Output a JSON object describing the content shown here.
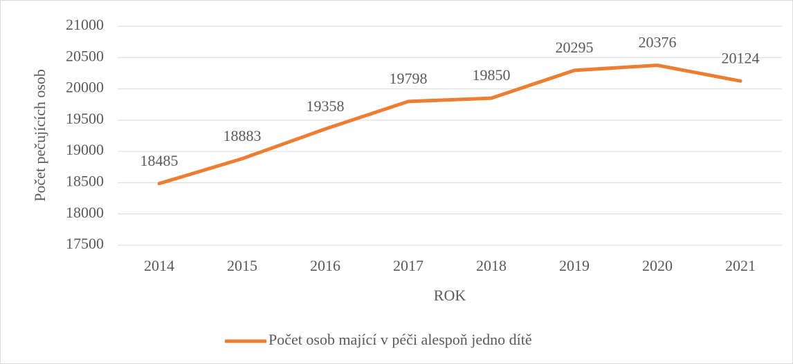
{
  "chart_data": {
    "type": "line",
    "categories": [
      "2014",
      "2015",
      "2016",
      "2017",
      "2018",
      "2019",
      "2020",
      "2021"
    ],
    "series": [
      {
        "name": "Počet osob mající v péči alespoň jedno dítě",
        "color": "#ed7d31",
        "values": [
          18485,
          18883,
          19358,
          19798,
          19850,
          20295,
          20376,
          20124
        ]
      }
    ],
    "ylim": [
      17500,
      21000
    ],
    "yticks": [
      17500,
      18000,
      18500,
      19000,
      19500,
      20000,
      20500,
      21000
    ],
    "grid": true,
    "x_label": "ROK",
    "y_label": "Počet pečujících osob",
    "legend": "bottom"
  }
}
